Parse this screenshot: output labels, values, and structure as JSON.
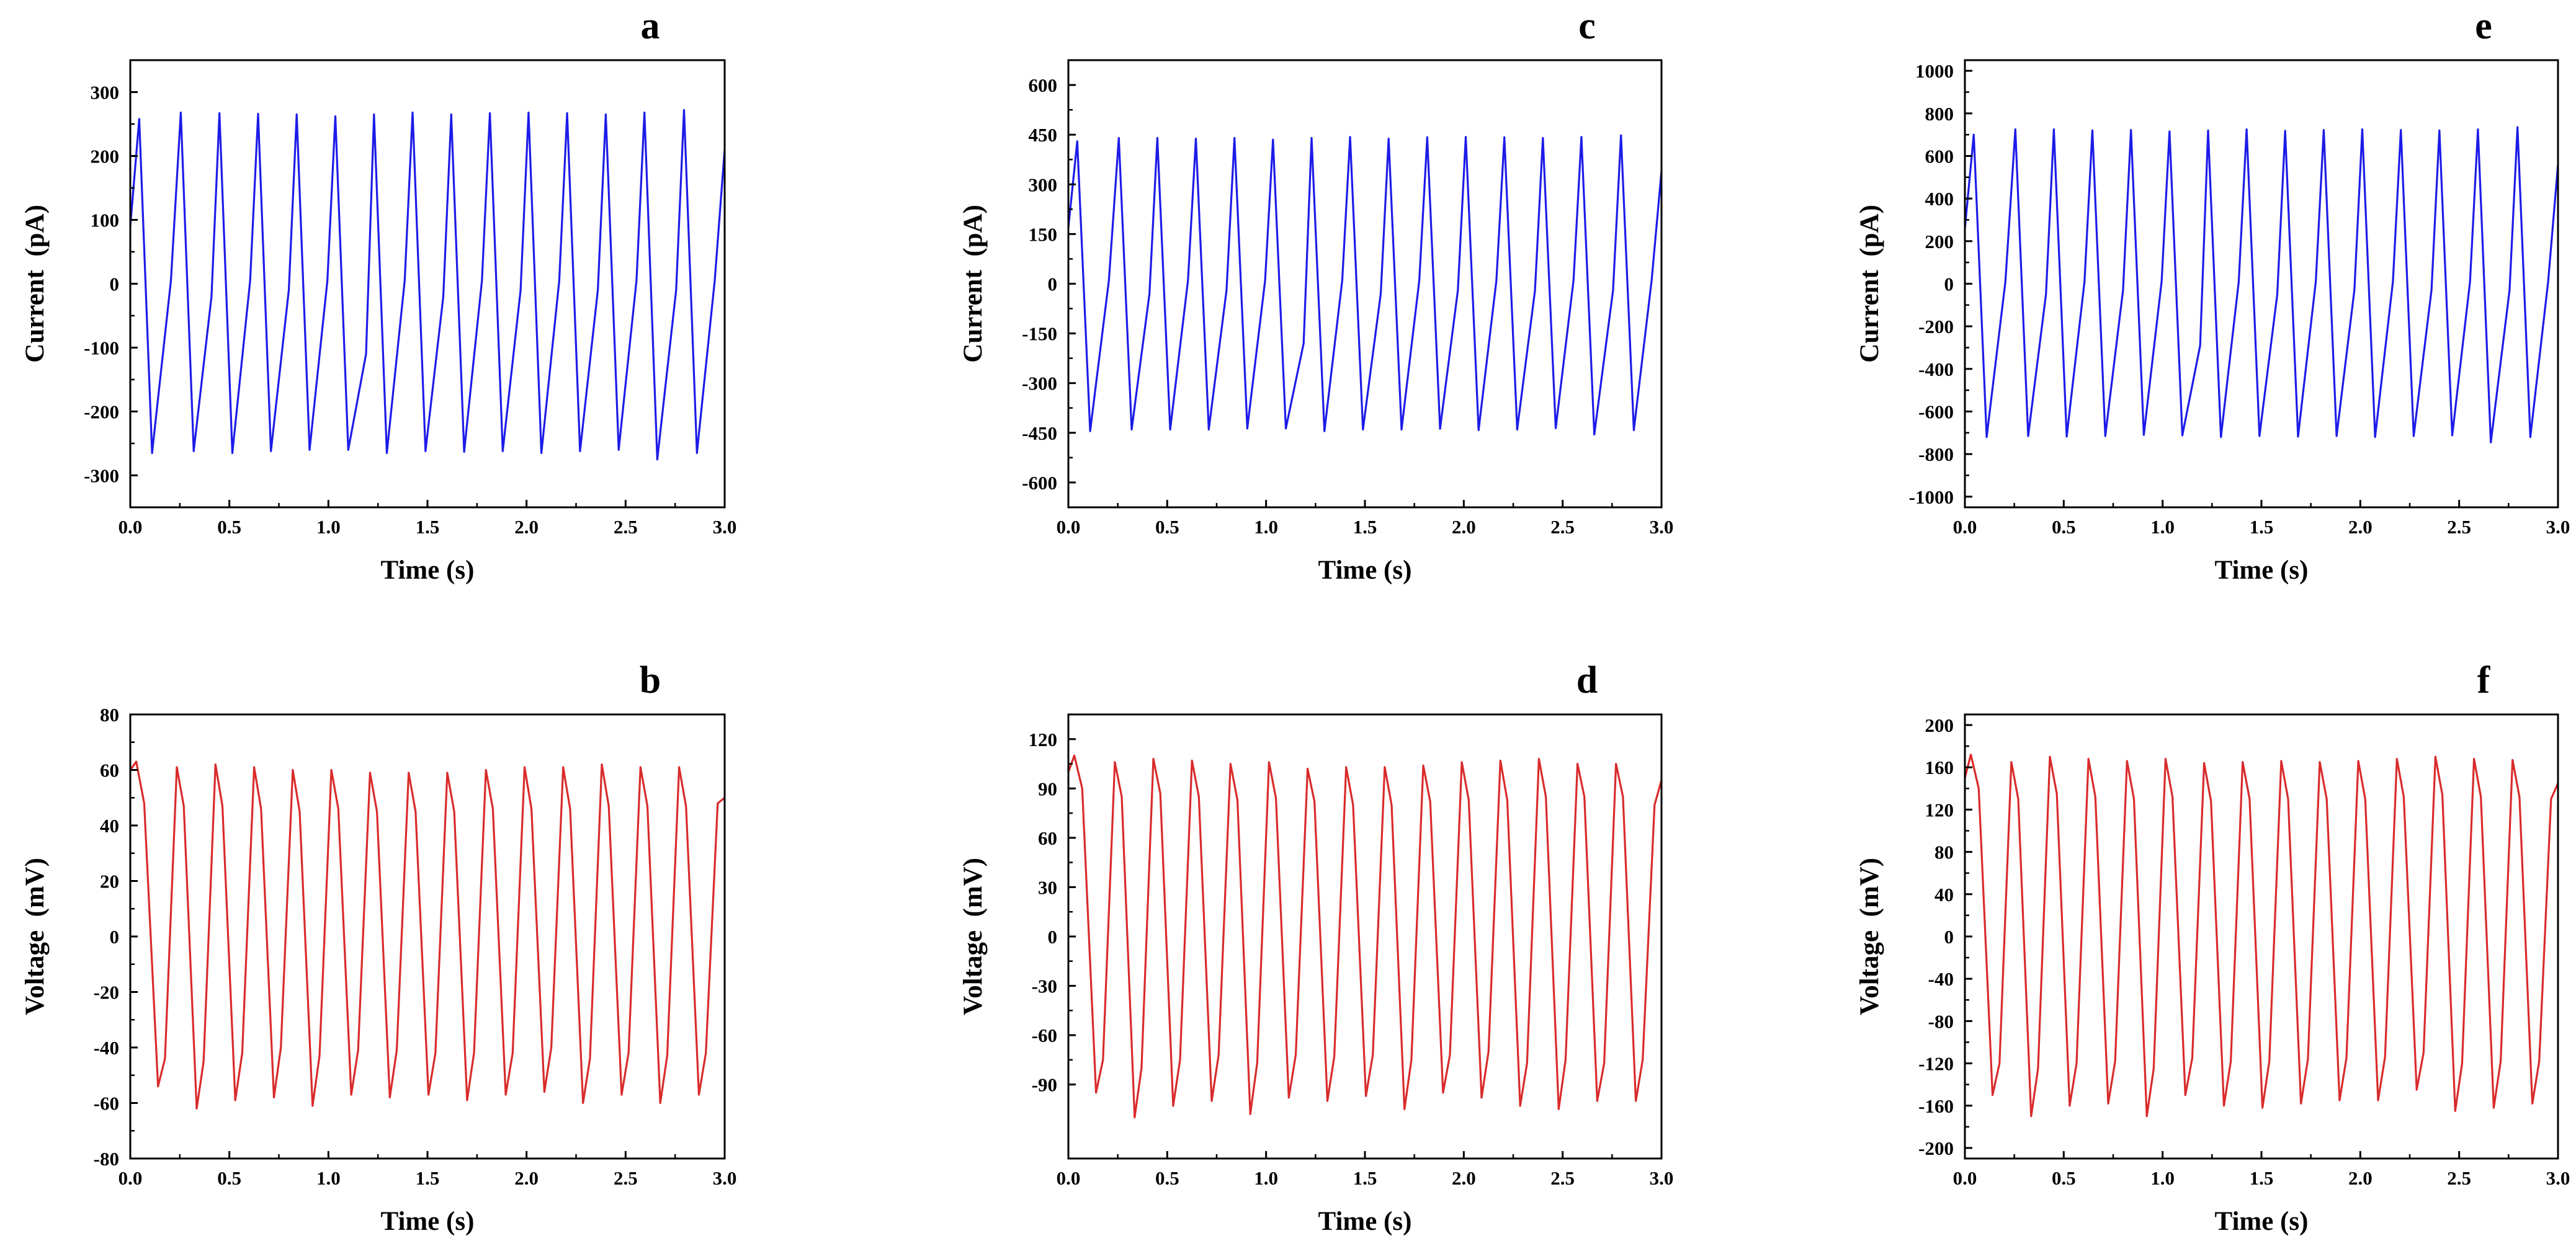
{
  "chart_data": [
    {
      "panel": "a",
      "type": "line",
      "xlabel": "Time (s)",
      "ylabel": "Current  (pA)",
      "xlim": [
        0,
        3
      ],
      "ylim": [
        -350,
        350
      ],
      "xticks": [
        0,
        0.5,
        1,
        1.5,
        2,
        2.5,
        3
      ],
      "xtick_labels": [
        "0.0",
        "0.5",
        "1.0",
        "1.5",
        "2.0",
        "2.5",
        "3.0"
      ],
      "yticks": [
        -300,
        -200,
        -100,
        0,
        100,
        200,
        300
      ],
      "ytick_labels": [
        "-300",
        "-200",
        "-100",
        "0",
        "100",
        "200",
        "300"
      ],
      "color": "#1c1ce8",
      "series": [
        {
          "name": "Current",
          "x": [
            0,
            0.045,
            0.11,
            0.205,
            0.255,
            0.32,
            0.41,
            0.45,
            0.515,
            0.605,
            0.645,
            0.71,
            0.8,
            0.84,
            0.905,
            0.995,
            1.035,
            1.1,
            1.19,
            1.23,
            1.295,
            1.385,
            1.425,
            1.49,
            1.58,
            1.62,
            1.685,
            1.775,
            1.815,
            1.88,
            1.97,
            2.01,
            2.075,
            2.165,
            2.205,
            2.27,
            2.36,
            2.4,
            2.465,
            2.555,
            2.595,
            2.66,
            2.755,
            2.795,
            2.86,
            2.95,
            3.0
          ],
          "y": [
            90,
            258,
            -265,
            5,
            268,
            -262,
            -20,
            267,
            -265,
            5,
            266,
            -262,
            -10,
            265,
            -260,
            5,
            262,
            -260,
            -110,
            265,
            -265,
            5,
            268,
            -262,
            -20,
            265,
            -263,
            5,
            267,
            -262,
            -10,
            268,
            -265,
            5,
            267,
            -262,
            -10,
            265,
            -260,
            5,
            268,
            -275,
            -10,
            272,
            -265,
            5,
            210
          ]
        }
      ]
    },
    {
      "panel": "c",
      "type": "line",
      "xlabel": "Time (s)",
      "ylabel": "Current  (pA)",
      "xlim": [
        0,
        3
      ],
      "ylim": [
        -675,
        675
      ],
      "xticks": [
        0,
        0.5,
        1,
        1.5,
        2,
        2.5,
        3
      ],
      "xtick_labels": [
        "0.0",
        "0.5",
        "1.0",
        "1.5",
        "2.0",
        "2.5",
        "3.0"
      ],
      "yticks": [
        -600,
        -450,
        -300,
        -150,
        0,
        150,
        300,
        450,
        600
      ],
      "ytick_labels": [
        "-600",
        "-450",
        "-300",
        "-150",
        "0",
        "150",
        "300",
        "450",
        "600"
      ],
      "color": "#1c1ce8",
      "series": [
        {
          "name": "Current",
          "x": [
            0,
            0.045,
            0.11,
            0.205,
            0.255,
            0.32,
            0.41,
            0.45,
            0.515,
            0.605,
            0.645,
            0.71,
            0.8,
            0.84,
            0.905,
            0.995,
            1.035,
            1.1,
            1.19,
            1.23,
            1.295,
            1.385,
            1.425,
            1.49,
            1.58,
            1.62,
            1.685,
            1.775,
            1.815,
            1.88,
            1.97,
            2.01,
            2.075,
            2.165,
            2.205,
            2.27,
            2.36,
            2.4,
            2.465,
            2.555,
            2.595,
            2.66,
            2.755,
            2.795,
            2.86,
            2.95,
            3.0
          ],
          "y": [
            170,
            430,
            -445,
            10,
            440,
            -440,
            -30,
            440,
            -440,
            10,
            438,
            -440,
            -20,
            440,
            -437,
            10,
            435,
            -437,
            -180,
            440,
            -445,
            10,
            443,
            -440,
            -30,
            438,
            -440,
            10,
            442,
            -438,
            -20,
            443,
            -442,
            10,
            442,
            -440,
            -20,
            440,
            -436,
            10,
            443,
            -455,
            -20,
            448,
            -442,
            10,
            340
          ]
        }
      ]
    },
    {
      "panel": "e",
      "type": "line",
      "xlabel": "Time (s)",
      "ylabel": "Current  (pA)",
      "xlim": [
        0,
        3
      ],
      "ylim": [
        -1050,
        1050
      ],
      "xticks": [
        0,
        0.5,
        1,
        1.5,
        2,
        2.5,
        3
      ],
      "xtick_labels": [
        "0.0",
        "0.5",
        "1.0",
        "1.5",
        "2.0",
        "2.5",
        "3.0"
      ],
      "yticks": [
        -1000,
        -800,
        -600,
        -400,
        -200,
        0,
        200,
        400,
        600,
        800,
        1000
      ],
      "ytick_labels": [
        "-1000",
        "-800",
        "-600",
        "-400",
        "-200",
        "0",
        "200",
        "400",
        "600",
        "800",
        "1000"
      ],
      "color": "#1c1ce8",
      "series": [
        {
          "name": "Current",
          "x": [
            0,
            0.045,
            0.11,
            0.205,
            0.255,
            0.32,
            0.41,
            0.45,
            0.515,
            0.605,
            0.645,
            0.71,
            0.8,
            0.84,
            0.905,
            0.995,
            1.035,
            1.1,
            1.19,
            1.23,
            1.295,
            1.385,
            1.425,
            1.49,
            1.58,
            1.62,
            1.685,
            1.775,
            1.815,
            1.88,
            1.97,
            2.01,
            2.075,
            2.165,
            2.205,
            2.27,
            2.36,
            2.4,
            2.465,
            2.555,
            2.595,
            2.66,
            2.755,
            2.795,
            2.86,
            2.95,
            3.0
          ],
          "y": [
            260,
            700,
            -720,
            10,
            725,
            -715,
            -50,
            725,
            -718,
            10,
            720,
            -715,
            -30,
            722,
            -710,
            10,
            715,
            -712,
            -290,
            720,
            -720,
            10,
            725,
            -715,
            -50,
            718,
            -718,
            10,
            722,
            -715,
            -30,
            725,
            -720,
            10,
            722,
            -715,
            -30,
            720,
            -712,
            10,
            725,
            -745,
            -30,
            735,
            -720,
            10,
            560
          ]
        }
      ]
    },
    {
      "panel": "b",
      "type": "line",
      "xlabel": "Time (s)",
      "ylabel": "Voltage  (mV)",
      "xlim": [
        0,
        3
      ],
      "ylim": [
        -80,
        80
      ],
      "xticks": [
        0,
        0.5,
        1,
        1.5,
        2,
        2.5,
        3
      ],
      "xtick_labels": [
        "0.0",
        "0.5",
        "1.0",
        "1.5",
        "2.0",
        "2.5",
        "3.0"
      ],
      "yticks": [
        -80,
        -60,
        -40,
        -20,
        0,
        20,
        40,
        60,
        80
      ],
      "ytick_labels": [
        "-80",
        "-60",
        "-40",
        "-20",
        "0",
        "20",
        "40",
        "60",
        "80"
      ],
      "color": "#d92b2b",
      "series": [
        {
          "name": "Voltage",
          "x": [
            0,
            0.03,
            0.07,
            0.14,
            0.175,
            0.235,
            0.27,
            0.335,
            0.37,
            0.43,
            0.465,
            0.53,
            0.565,
            0.625,
            0.66,
            0.725,
            0.76,
            0.82,
            0.855,
            0.92,
            0.955,
            1.015,
            1.05,
            1.115,
            1.15,
            1.21,
            1.245,
            1.31,
            1.345,
            1.405,
            1.44,
            1.505,
            1.54,
            1.6,
            1.635,
            1.7,
            1.735,
            1.795,
            1.83,
            1.895,
            1.93,
            1.99,
            2.025,
            2.09,
            2.125,
            2.185,
            2.22,
            2.285,
            2.32,
            2.38,
            2.415,
            2.48,
            2.515,
            2.575,
            2.61,
            2.675,
            2.71,
            2.77,
            2.805,
            2.87,
            2.905,
            2.965,
            3.0
          ],
          "y": [
            60,
            63,
            48,
            -54,
            -44,
            61,
            47,
            -62,
            -45,
            62,
            47,
            -59,
            -42,
            61,
            46,
            -58,
            -40,
            60,
            45,
            -61,
            -43,
            60,
            46,
            -57,
            -41,
            59,
            45,
            -58,
            -41,
            59,
            45,
            -57,
            -42,
            59,
            45,
            -59,
            -42,
            60,
            46,
            -57,
            -42,
            61,
            46,
            -56,
            -40,
            61,
            46,
            -60,
            -44,
            62,
            47,
            -57,
            -42,
            61,
            47,
            -60,
            -43,
            61,
            47,
            -57,
            -42,
            48,
            50
          ]
        }
      ]
    },
    {
      "panel": "d",
      "type": "line",
      "xlabel": "Time (s)",
      "ylabel": "Voltage  (mV)",
      "xlim": [
        0,
        3
      ],
      "ylim": [
        -135,
        135
      ],
      "xticks": [
        0,
        0.5,
        1,
        1.5,
        2,
        2.5,
        3
      ],
      "xtick_labels": [
        "0.0",
        "0.5",
        "1.0",
        "1.5",
        "2.0",
        "2.5",
        "3.0"
      ],
      "yticks": [
        -90,
        -60,
        -30,
        0,
        30,
        60,
        90,
        120
      ],
      "ytick_labels": [
        "-90",
        "-60",
        "-30",
        "0",
        "30",
        "60",
        "90",
        "120"
      ],
      "color": "#d92b2b",
      "series": [
        {
          "name": "Voltage",
          "x": [
            0,
            0.03,
            0.07,
            0.14,
            0.175,
            0.235,
            0.27,
            0.335,
            0.37,
            0.43,
            0.465,
            0.53,
            0.565,
            0.625,
            0.66,
            0.725,
            0.76,
            0.82,
            0.855,
            0.92,
            0.955,
            1.015,
            1.05,
            1.115,
            1.15,
            1.21,
            1.245,
            1.31,
            1.345,
            1.405,
            1.44,
            1.505,
            1.54,
            1.6,
            1.635,
            1.7,
            1.735,
            1.795,
            1.83,
            1.895,
            1.93,
            1.99,
            2.025,
            2.09,
            2.125,
            2.185,
            2.22,
            2.285,
            2.32,
            2.38,
            2.415,
            2.48,
            2.515,
            2.575,
            2.61,
            2.675,
            2.71,
            2.77,
            2.805,
            2.87,
            2.905,
            2.965,
            3.0
          ],
          "y": [
            100,
            110,
            90,
            -95,
            -75,
            106,
            85,
            -110,
            -80,
            108,
            87,
            -103,
            -75,
            107,
            85,
            -100,
            -72,
            105,
            83,
            -108,
            -77,
            106,
            84,
            -98,
            -72,
            102,
            82,
            -100,
            -73,
            103,
            80,
            -97,
            -72,
            103,
            80,
            -105,
            -75,
            104,
            82,
            -95,
            -72,
            106,
            83,
            -98,
            -70,
            107,
            83,
            -103,
            -77,
            108,
            85,
            -105,
            -75,
            105,
            85,
            -100,
            -77,
            105,
            85,
            -100,
            -75,
            80,
            95
          ]
        }
      ]
    },
    {
      "panel": "f",
      "type": "line",
      "xlabel": "Time (s)",
      "ylabel": "Voltage  (mV)",
      "xlim": [
        0,
        3
      ],
      "ylim": [
        -210,
        210
      ],
      "xticks": [
        0,
        0.5,
        1,
        1.5,
        2,
        2.5,
        3
      ],
      "xtick_labels": [
        "0.0",
        "0.5",
        "1.0",
        "1.5",
        "2.0",
        "2.5",
        "3.0"
      ],
      "yticks": [
        -200,
        -160,
        -120,
        -80,
        -40,
        0,
        40,
        80,
        120,
        160,
        200
      ],
      "ytick_labels": [
        "-200",
        "-160",
        "-120",
        "-80",
        "-40",
        "0",
        "40",
        "80",
        "120",
        "160",
        "200"
      ],
      "color": "#d92b2b",
      "series": [
        {
          "name": "Voltage",
          "x": [
            0,
            0.03,
            0.07,
            0.14,
            0.175,
            0.235,
            0.27,
            0.335,
            0.37,
            0.43,
            0.465,
            0.53,
            0.565,
            0.625,
            0.66,
            0.725,
            0.76,
            0.82,
            0.855,
            0.92,
            0.955,
            1.015,
            1.05,
            1.115,
            1.15,
            1.21,
            1.245,
            1.31,
            1.345,
            1.405,
            1.44,
            1.505,
            1.54,
            1.6,
            1.635,
            1.7,
            1.735,
            1.795,
            1.83,
            1.895,
            1.93,
            1.99,
            2.025,
            2.09,
            2.125,
            2.185,
            2.22,
            2.285,
            2.32,
            2.38,
            2.415,
            2.48,
            2.515,
            2.575,
            2.61,
            2.675,
            2.71,
            2.77,
            2.805,
            2.87,
            2.905,
            2.965,
            3.0
          ],
          "y": [
            150,
            172,
            140,
            -150,
            -120,
            165,
            130,
            -170,
            -125,
            170,
            135,
            -160,
            -120,
            168,
            132,
            -158,
            -118,
            166,
            130,
            -170,
            -125,
            168,
            132,
            -150,
            -115,
            164,
            128,
            -160,
            -118,
            165,
            130,
            -162,
            -118,
            166,
            130,
            -158,
            -116,
            165,
            130,
            -155,
            -115,
            166,
            130,
            -155,
            -114,
            168,
            132,
            -145,
            -110,
            170,
            134,
            -165,
            -120,
            168,
            132,
            -162,
            -118,
            167,
            132,
            -158,
            -118,
            130,
            145
          ]
        }
      ]
    }
  ]
}
